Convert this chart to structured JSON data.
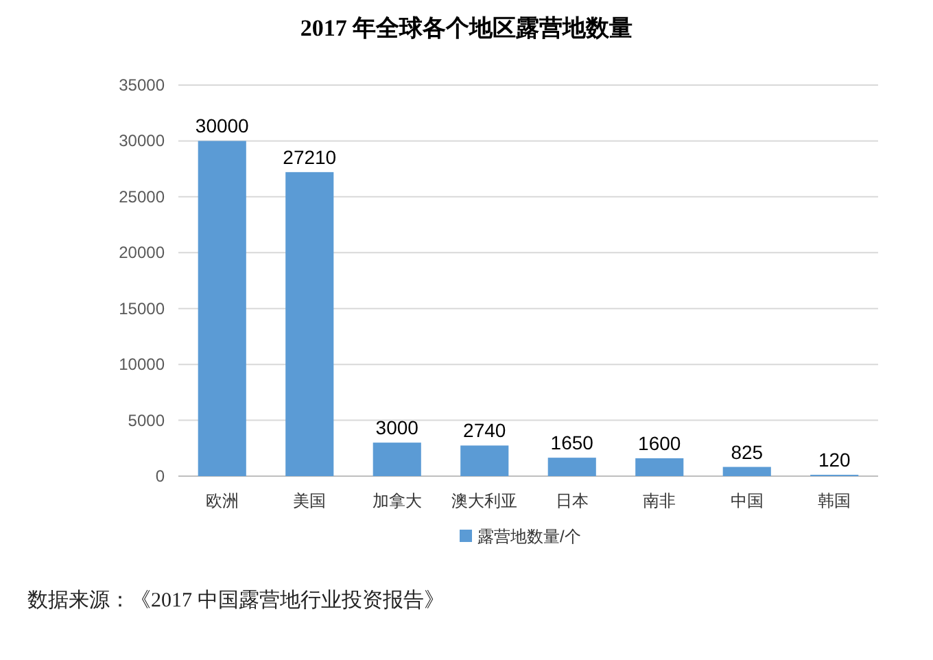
{
  "chart_data": {
    "type": "bar",
    "title": "2017 年全球各个地区露营地数量",
    "categories": [
      "欧洲",
      "美国",
      "加拿大",
      "澳大利亚",
      "日本",
      "南非",
      "中国",
      "韩国"
    ],
    "series": [
      {
        "name": "露营地数量/个",
        "color": "#5b9bd5",
        "values": [
          30000,
          27210,
          3000,
          2740,
          1650,
          1600,
          825,
          120
        ]
      }
    ],
    "ylim": [
      0,
      35000
    ],
    "yticks": [
      0,
      5000,
      10000,
      15000,
      20000,
      25000,
      30000,
      35000
    ],
    "grid": "y",
    "legend": "bottom",
    "data_labels": true,
    "annotations": [
      "数据来源：《2017 中国露营地行业投资报告》"
    ]
  }
}
